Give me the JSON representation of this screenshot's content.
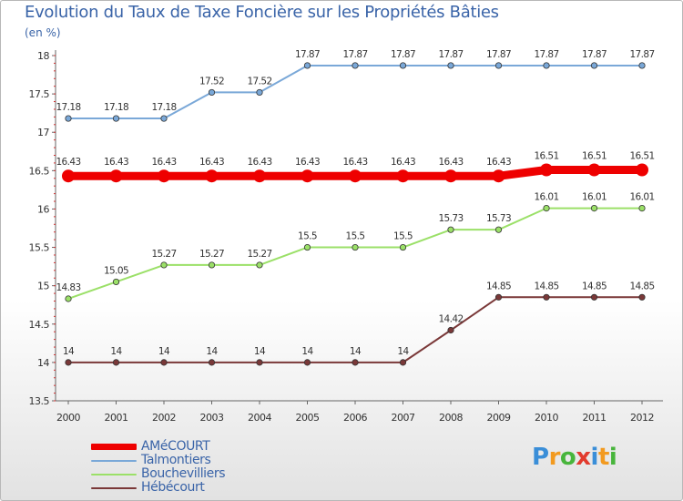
{
  "title": "Evolution du Taux de Taxe Foncière sur les Propriétés Bâties",
  "unit_label": "(en %)",
  "logo": {
    "letters": [
      "P",
      "r",
      "o",
      "x",
      "i",
      "t",
      "i"
    ],
    "colors": [
      "#3a8ed8",
      "#f29a1f",
      "#48b53c",
      "#e23b2e",
      "#3a8ed8",
      "#f29a1f",
      "#48b53c"
    ]
  },
  "chart_data": {
    "type": "line",
    "title": "Evolution du Taux de Taxe Foncière sur les Propriétés Bâties",
    "ylabel": "(en %)",
    "xlabel": "",
    "x": [
      "2000",
      "2001",
      "2002",
      "2003",
      "2004",
      "2005",
      "2006",
      "2007",
      "2008",
      "2009",
      "2010",
      "2011",
      "2012"
    ],
    "ylim": [
      13.5,
      18
    ],
    "yticks": [
      "13.5",
      "14",
      "14.5",
      "15",
      "15.5",
      "16",
      "16.5",
      "17",
      "17.5",
      "18"
    ],
    "grid": false,
    "legend_position": "bottom-left",
    "series": [
      {
        "name": "AMéCOURT",
        "color": "#ee0000",
        "emphasis": true,
        "values": [
          16.43,
          16.43,
          16.43,
          16.43,
          16.43,
          16.43,
          16.43,
          16.43,
          16.43,
          16.43,
          16.51,
          16.51,
          16.51
        ],
        "labels": [
          "16.43",
          "16.43",
          "16.43",
          "16.43",
          "16.43",
          "16.43",
          "16.43",
          "16.43",
          "16.43",
          "16.43",
          "16.51",
          "16.51",
          "16.51"
        ]
      },
      {
        "name": "Talmontiers",
        "color": "#7aa8d8",
        "emphasis": false,
        "values": [
          17.18,
          17.18,
          17.18,
          17.52,
          17.52,
          17.87,
          17.87,
          17.87,
          17.87,
          17.87,
          17.87,
          17.87,
          17.87
        ],
        "labels": [
          "17.18",
          "17.18",
          "17.18",
          "17.52",
          "17.52",
          "17.87",
          "17.87",
          "17.87",
          "17.87",
          "17.87",
          "17.87",
          "17.87",
          "17.87"
        ]
      },
      {
        "name": "Bouchevilliers",
        "color": "#9be068",
        "emphasis": false,
        "values": [
          14.83,
          15.05,
          15.27,
          15.27,
          15.27,
          15.5,
          15.5,
          15.5,
          15.73,
          15.73,
          16.01,
          16.01,
          16.01
        ],
        "labels": [
          "14.83",
          "15.05",
          "15.27",
          "15.27",
          "15.27",
          "15.5",
          "15.5",
          "15.5",
          "15.73",
          "15.73",
          "16.01",
          "16.01",
          "16.01"
        ]
      },
      {
        "name": "Hébécourt",
        "color": "#7a3838",
        "emphasis": false,
        "values": [
          14,
          14,
          14,
          14,
          14,
          14,
          14,
          14,
          14.42,
          14.85,
          14.85,
          14.85,
          14.85
        ],
        "labels": [
          "14",
          "14",
          "14",
          "14",
          "14",
          "14",
          "14",
          "14",
          "14.42",
          "14.85",
          "14.85",
          "14.85",
          "14.85"
        ]
      }
    ]
  }
}
